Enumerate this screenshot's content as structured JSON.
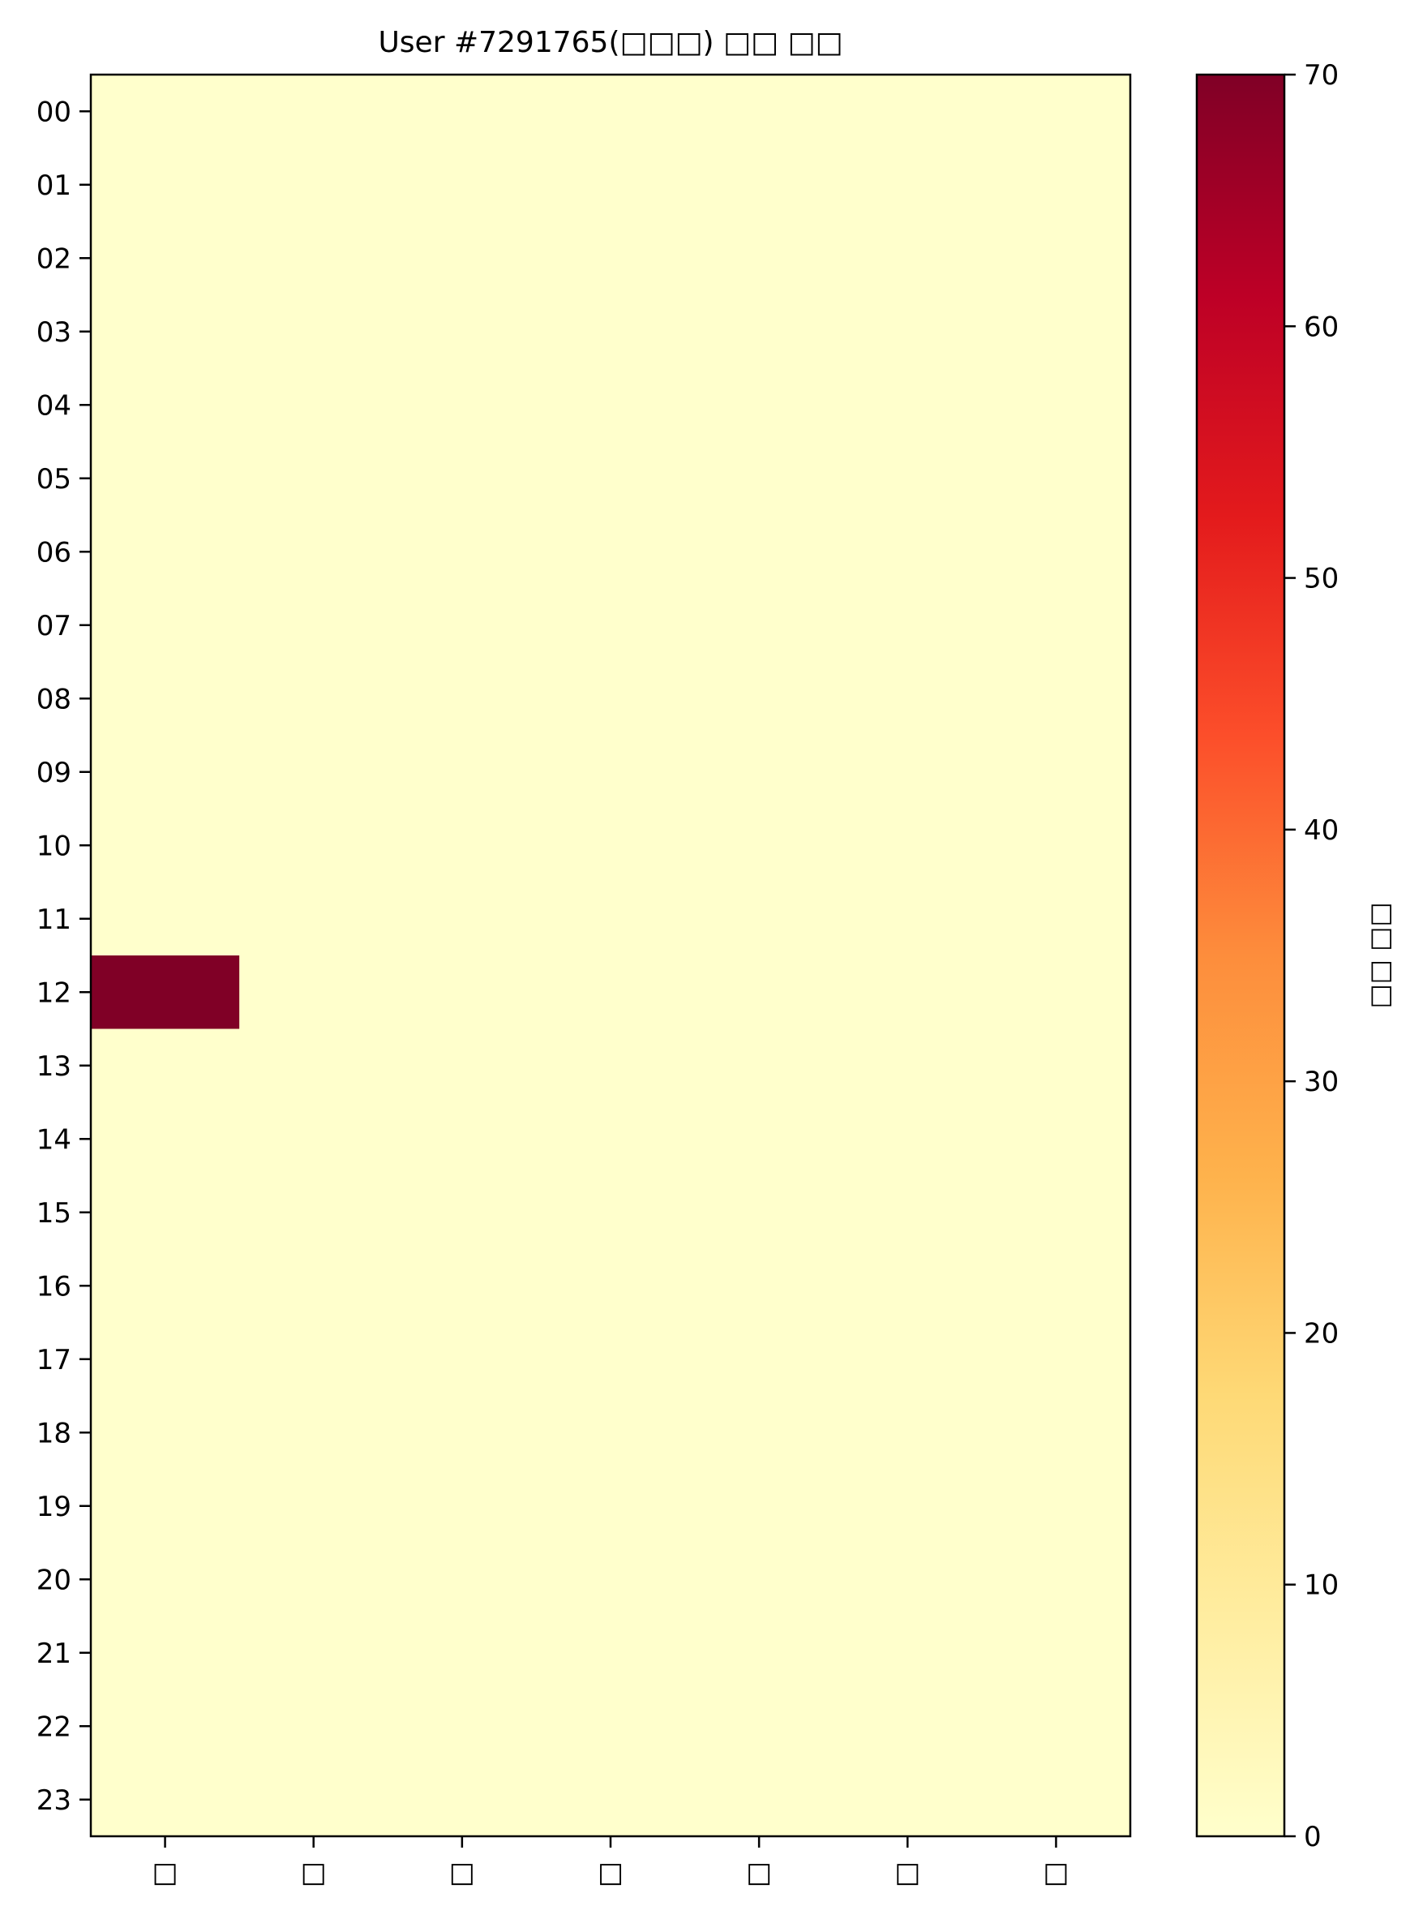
{
  "chart_data": {
    "type": "heatmap",
    "title": "User #7291765(□□□) □□ □□",
    "y_categories": [
      "00",
      "01",
      "02",
      "03",
      "04",
      "05",
      "06",
      "07",
      "08",
      "09",
      "10",
      "11",
      "12",
      "13",
      "14",
      "15",
      "16",
      "17",
      "18",
      "19",
      "20",
      "21",
      "22",
      "23"
    ],
    "x_categories": [
      "□",
      "□",
      "□",
      "□",
      "□",
      "□",
      "□"
    ],
    "values": [
      [
        0,
        0,
        0,
        0,
        0,
        0,
        0
      ],
      [
        0,
        0,
        0,
        0,
        0,
        0,
        0
      ],
      [
        0,
        0,
        0,
        0,
        0,
        0,
        0
      ],
      [
        0,
        0,
        0,
        0,
        0,
        0,
        0
      ],
      [
        0,
        0,
        0,
        0,
        0,
        0,
        0
      ],
      [
        0,
        0,
        0,
        0,
        0,
        0,
        0
      ],
      [
        0,
        0,
        0,
        0,
        0,
        0,
        0
      ],
      [
        0,
        0,
        0,
        0,
        0,
        0,
        0
      ],
      [
        0,
        0,
        0,
        0,
        0,
        0,
        0
      ],
      [
        0,
        0,
        0,
        0,
        0,
        0,
        0
      ],
      [
        0,
        0,
        0,
        0,
        0,
        0,
        0
      ],
      [
        0,
        0,
        0,
        0,
        0,
        0,
        0
      ],
      [
        70,
        0,
        0,
        0,
        0,
        0,
        0
      ],
      [
        0,
        0,
        0,
        0,
        0,
        0,
        0
      ],
      [
        0,
        0,
        0,
        0,
        0,
        0,
        0
      ],
      [
        0,
        0,
        0,
        0,
        0,
        0,
        0
      ],
      [
        0,
        0,
        0,
        0,
        0,
        0,
        0
      ],
      [
        0,
        0,
        0,
        0,
        0,
        0,
        0
      ],
      [
        0,
        0,
        0,
        0,
        0,
        0,
        0
      ],
      [
        0,
        0,
        0,
        0,
        0,
        0,
        0
      ],
      [
        0,
        0,
        0,
        0,
        0,
        0,
        0
      ],
      [
        0,
        0,
        0,
        0,
        0,
        0,
        0
      ],
      [
        0,
        0,
        0,
        0,
        0,
        0,
        0
      ],
      [
        0,
        0,
        0,
        0,
        0,
        0,
        0
      ]
    ],
    "colorbar": {
      "label": "□□ □□",
      "range": [
        0,
        70
      ],
      "ticks": [
        0,
        10,
        20,
        30,
        40,
        50,
        60,
        70
      ],
      "colormap": "YlOrRd",
      "colors": [
        "#ffffcc",
        "#ffeda0",
        "#fed976",
        "#feb24c",
        "#fd8d3c",
        "#fc4e2a",
        "#e31a1c",
        "#bd0026",
        "#800026"
      ]
    },
    "grid": false
  }
}
